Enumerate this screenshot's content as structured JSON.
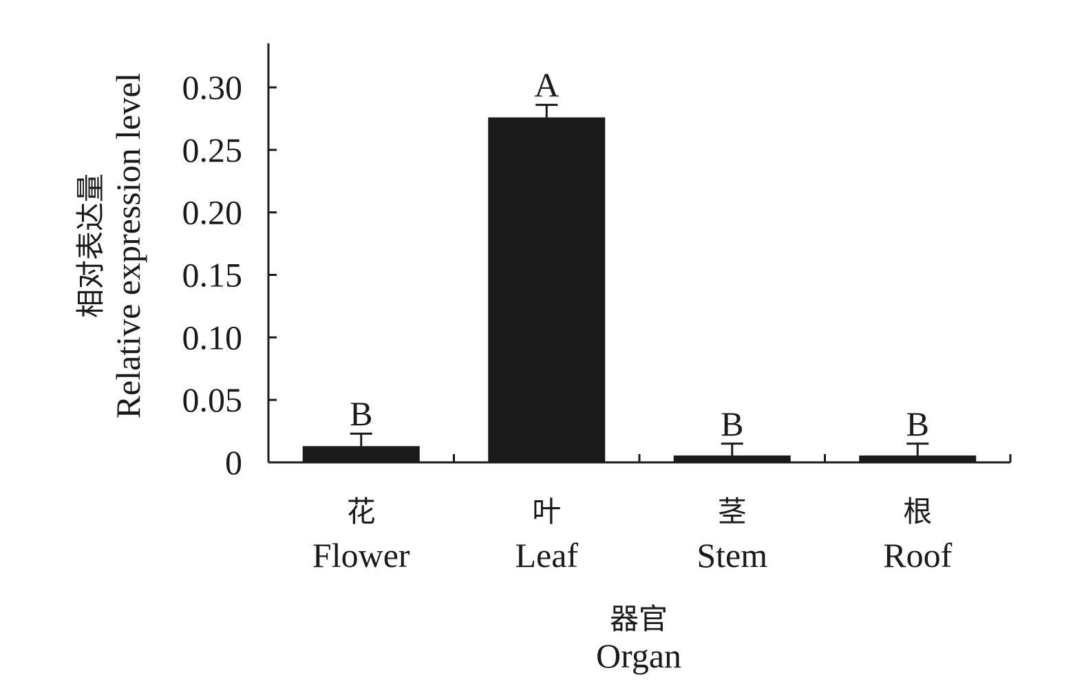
{
  "chart_data": {
    "type": "bar",
    "categories_cn": [
      "花",
      "叶",
      "茎",
      "根"
    ],
    "categories": [
      "Flower",
      "Leaf",
      "Stem",
      "Roof"
    ],
    "values": [
      0.013,
      0.276,
      0.005,
      0.005
    ],
    "errors": [
      0.01,
      0.01,
      0.01,
      0.01
    ],
    "significance": [
      "B",
      "A",
      "B",
      "B"
    ],
    "ylim": [
      0,
      0.33
    ],
    "yticks": [
      0,
      0.05,
      0.1,
      0.15,
      0.2,
      0.25,
      0.3
    ],
    "ytick_labels": [
      "0",
      "0.05",
      "0.10",
      "0.15",
      "0.20",
      "0.25",
      "0.30"
    ],
    "ylabel_cn": "相对表达量",
    "ylabel": "Relative expression level",
    "xlabel_cn": "器官",
    "xlabel": "Organ",
    "bar_color": "#1a1a1a",
    "grid": false
  }
}
